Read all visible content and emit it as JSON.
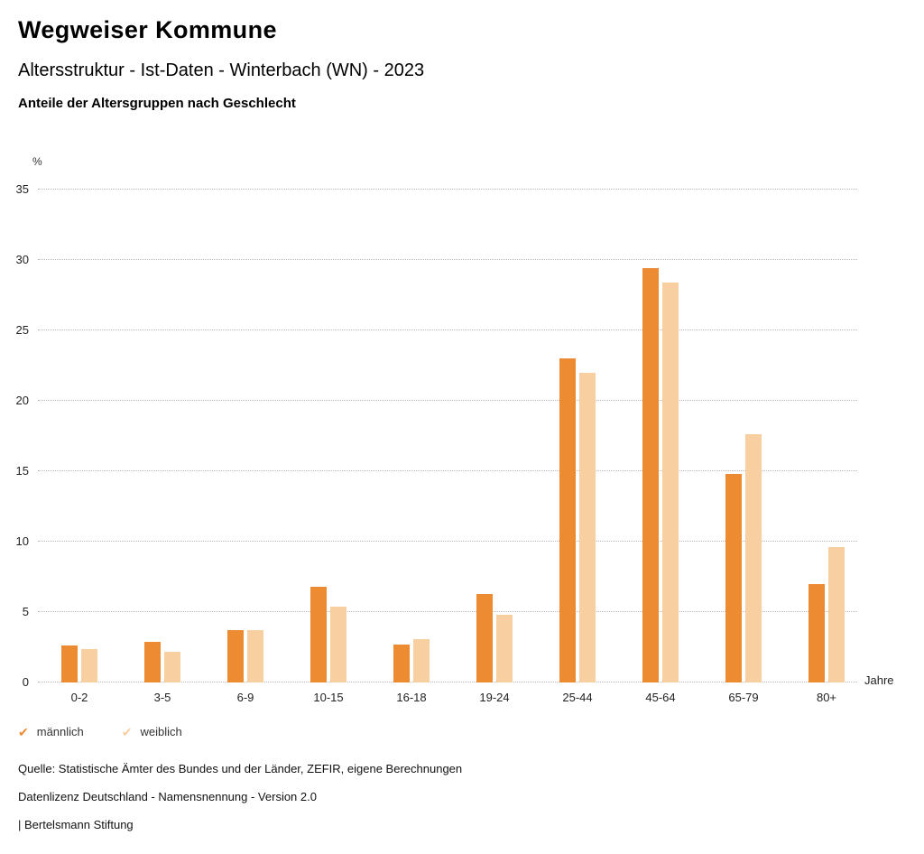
{
  "header": {
    "title": "Wegweiser Kommune",
    "subtitle": "Altersstruktur - Ist-Daten - Winterbach (WN) - 2023",
    "chart_heading": "Anteile der Altersgruppen nach Geschlecht"
  },
  "chart_data": {
    "type": "bar",
    "title": "Anteile der Altersgruppen nach Geschlecht",
    "categories": [
      "0-2",
      "3-5",
      "6-9",
      "10-15",
      "16-18",
      "19-24",
      "25-44",
      "45-64",
      "65-79",
      "80+"
    ],
    "series": [
      {
        "name": "männlich",
        "color": "#ED8B33",
        "values": [
          2.6,
          2.9,
          3.7,
          6.8,
          2.7,
          6.3,
          23.0,
          29.4,
          14.8,
          7.0
        ]
      },
      {
        "name": "weiblich",
        "color": "#F7CFA0",
        "values": [
          2.4,
          2.2,
          3.7,
          5.4,
          3.1,
          4.8,
          22.0,
          28.4,
          17.6,
          9.6
        ]
      }
    ],
    "ylabel": "%",
    "xlabel": "Jahre",
    "ylim": [
      0,
      35
    ],
    "ytick_step": 5,
    "grid": "dotted-horizontal",
    "legend_position": "bottom-left"
  },
  "icons": {
    "legend_check": "✔"
  },
  "footer": {
    "source": "Quelle: Statistische Ämter des Bundes und der Länder, ZEFIR, eigene Berechnungen",
    "license": "Datenlizenz Deutschland - Namensnennung - Version 2.0",
    "attribution": "| Bertelsmann Stiftung"
  }
}
